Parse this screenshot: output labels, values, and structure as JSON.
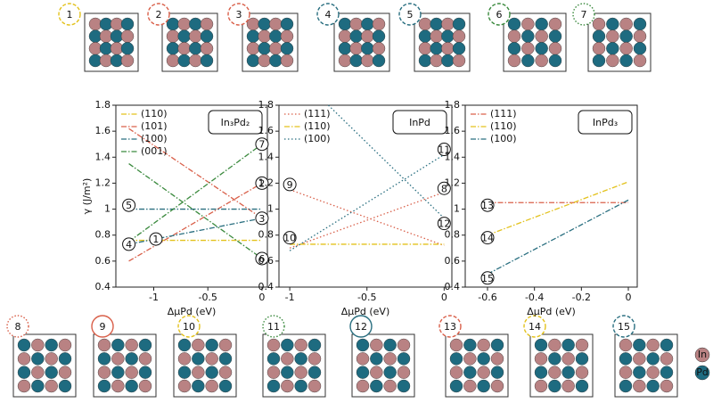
{
  "chart_data": [
    {
      "type": "line",
      "title": "In₃Pd₂",
      "xlabel": "ΔμPd (eV)",
      "ylabel": "γ (J/m²)",
      "xlim": [
        -1.35,
        0.05
      ],
      "ylim": [
        0.4,
        1.8
      ],
      "xticks": [
        -1.0,
        -0.5,
        0.0
      ],
      "yticks": [
        0.4,
        0.6,
        0.8,
        1.0,
        1.2,
        1.4,
        1.6,
        1.8
      ],
      "series": [
        {
          "name": "(110)",
          "color": "#e3c21c",
          "style": "dashdot",
          "x": [
            -1.23,
            0
          ],
          "values": [
            0.76,
            0.76
          ]
        },
        {
          "name": "(101)",
          "color": "#d9604a",
          "style": "dashdot",
          "x": [
            -1.23,
            0,
            null,
            -1.23,
            0
          ],
          "values": [
            0.6,
            1.2,
            null,
            1.62,
            0.93
          ]
        },
        {
          "name": "(100)",
          "color": "#2a6f80",
          "style": "dashdot",
          "x": [
            -1.23,
            0,
            null,
            -1.23,
            0
          ],
          "values": [
            1.0,
            1.0,
            null,
            0.73,
            0.93
          ]
        },
        {
          "name": "(001)",
          "color": "#3b8a3e",
          "style": "dashdot",
          "x": [
            -1.23,
            0,
            null,
            -1.23,
            0
          ],
          "values": [
            1.35,
            0.62,
            null,
            0.75,
            1.5
          ]
        }
      ],
      "annotations": [
        {
          "text": "1",
          "x": -0.98,
          "y": 0.77
        },
        {
          "text": "2",
          "x": 0,
          "y": 1.2
        },
        {
          "text": "3",
          "x": 0,
          "y": 0.93
        },
        {
          "text": "4",
          "x": -1.23,
          "y": 0.73
        },
        {
          "text": "5",
          "x": -1.23,
          "y": 1.03
        },
        {
          "text": "6",
          "x": 0,
          "y": 0.62
        },
        {
          "text": "7",
          "x": 0,
          "y": 1.5
        }
      ]
    },
    {
      "type": "line",
      "title": "InPd",
      "xlabel": "ΔμPd (eV)",
      "xlim": [
        -1.07,
        0.05
      ],
      "ylim": [
        0.4,
        1.8
      ],
      "xticks": [
        -1.0,
        -0.5,
        0.0
      ],
      "yticks": [
        0.4,
        0.6,
        0.8,
        1.0,
        1.2,
        1.4,
        1.6,
        1.8
      ],
      "series": [
        {
          "name": "(111)",
          "color": "#d9604a",
          "style": "dotted",
          "x": [
            -1,
            0,
            null,
            -1,
            0
          ],
          "values": [
            0.7,
            1.13,
            null,
            1.15,
            0.72
          ]
        },
        {
          "name": "(110)",
          "color": "#e3c21c",
          "style": "dashdot",
          "x": [
            -1,
            0
          ],
          "values": [
            0.73,
            0.73
          ]
        },
        {
          "name": "(100)",
          "color": "#2a6f80",
          "style": "dotted",
          "x": [
            -1,
            0,
            null,
            -0.75,
            0
          ],
          "values": [
            0.68,
            1.42,
            null,
            1.8,
            0.93
          ]
        }
      ],
      "annotations": [
        {
          "text": "8",
          "x": 0,
          "y": 1.16
        },
        {
          "text": "9",
          "x": -1,
          "y": 1.19
        },
        {
          "text": "10",
          "x": -1,
          "y": 0.78
        },
        {
          "text": "11",
          "x": 0,
          "y": 1.46
        },
        {
          "text": "12",
          "x": 0,
          "y": 0.89
        }
      ]
    },
    {
      "type": "line",
      "title": "InPd₃",
      "xlabel": "ΔμPd (eV)",
      "xlim": [
        -0.695,
        0.038
      ],
      "ylim": [
        0.4,
        1.8
      ],
      "xticks": [
        -0.6,
        -0.4,
        -0.2,
        0.0
      ],
      "yticks": [
        0.4,
        0.6,
        0.8,
        1.0,
        1.2,
        1.4,
        1.6,
        1.8
      ],
      "series": [
        {
          "name": "(111)",
          "color": "#d9604a",
          "style": "dashdot",
          "x": [
            -0.6,
            0
          ],
          "values": [
            1.05,
            1.05
          ]
        },
        {
          "name": "(110)",
          "color": "#e3c21c",
          "style": "dashdot",
          "x": [
            -0.6,
            0
          ],
          "values": [
            0.8,
            1.21
          ]
        },
        {
          "name": "(100)",
          "color": "#2a6f80",
          "style": "dashdot",
          "x": [
            -0.6,
            0
          ],
          "values": [
            0.5,
            1.07
          ]
        }
      ],
      "annotations": [
        {
          "text": "13",
          "x": -0.6,
          "y": 1.03
        },
        {
          "text": "14",
          "x": -0.6,
          "y": 0.78
        },
        {
          "text": "15",
          "x": -0.6,
          "y": 0.47
        }
      ]
    }
  ],
  "structures": [
    "1",
    "2",
    "3",
    "4",
    "5",
    "6",
    "7",
    "8",
    "9",
    "10",
    "11",
    "12",
    "13",
    "14",
    "15"
  ],
  "legend": [
    "In",
    "Pd"
  ]
}
